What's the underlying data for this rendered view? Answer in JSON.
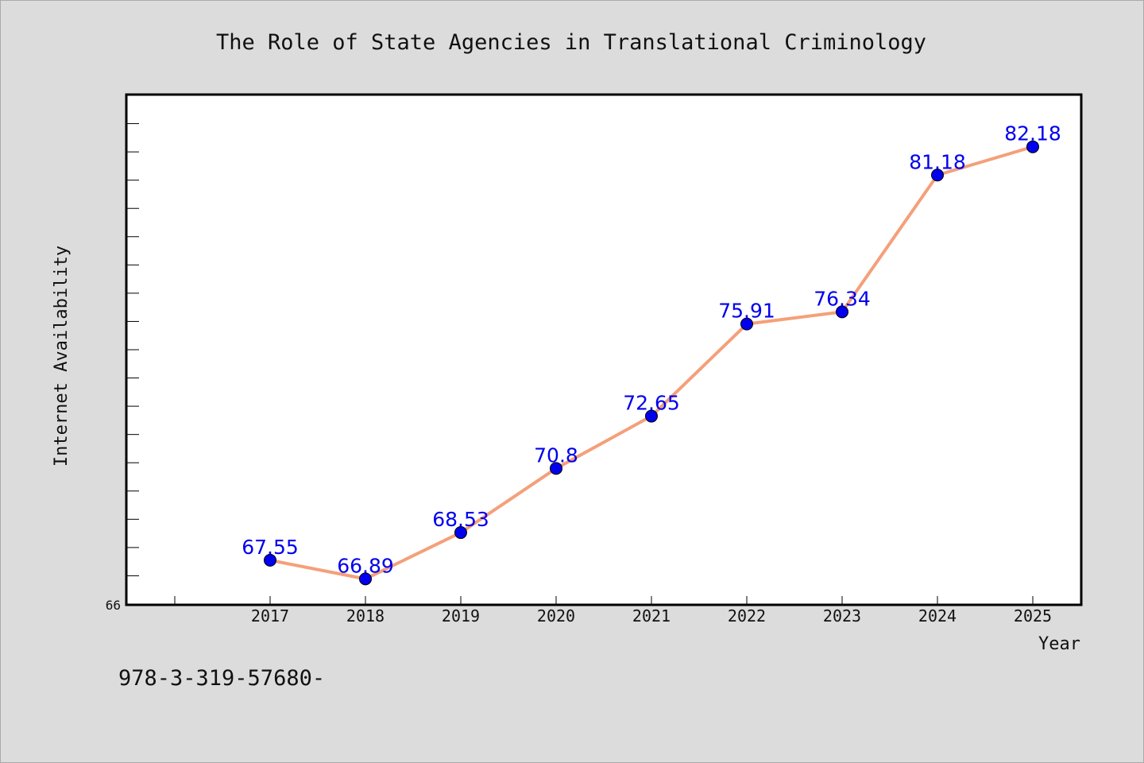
{
  "chart_data": {
    "type": "line",
    "title": "The Role of State Agencies in Translational Criminology",
    "xlabel": "Year",
    "ylabel": "Internet Availability",
    "x": [
      "2017",
      "2018",
      "2019",
      "2020",
      "2021",
      "2022",
      "2023",
      "2024",
      "2025"
    ],
    "values": [
      67.55,
      66.89,
      68.53,
      70.8,
      72.65,
      75.91,
      76.34,
      81.18,
      82.18
    ],
    "data_labels": [
      "67.55",
      "66.89",
      "68.53",
      "70.8",
      "72.65",
      "75.91",
      "76.34",
      "81.18",
      "82.18"
    ],
    "ylim": [
      66,
      84
    ],
    "ytick_label": "66",
    "grid": false,
    "line_color": "#f4a07a",
    "marker_color": "#0000ee",
    "label_color": "#0000ee"
  },
  "footnote": "978-3-319-57680-"
}
